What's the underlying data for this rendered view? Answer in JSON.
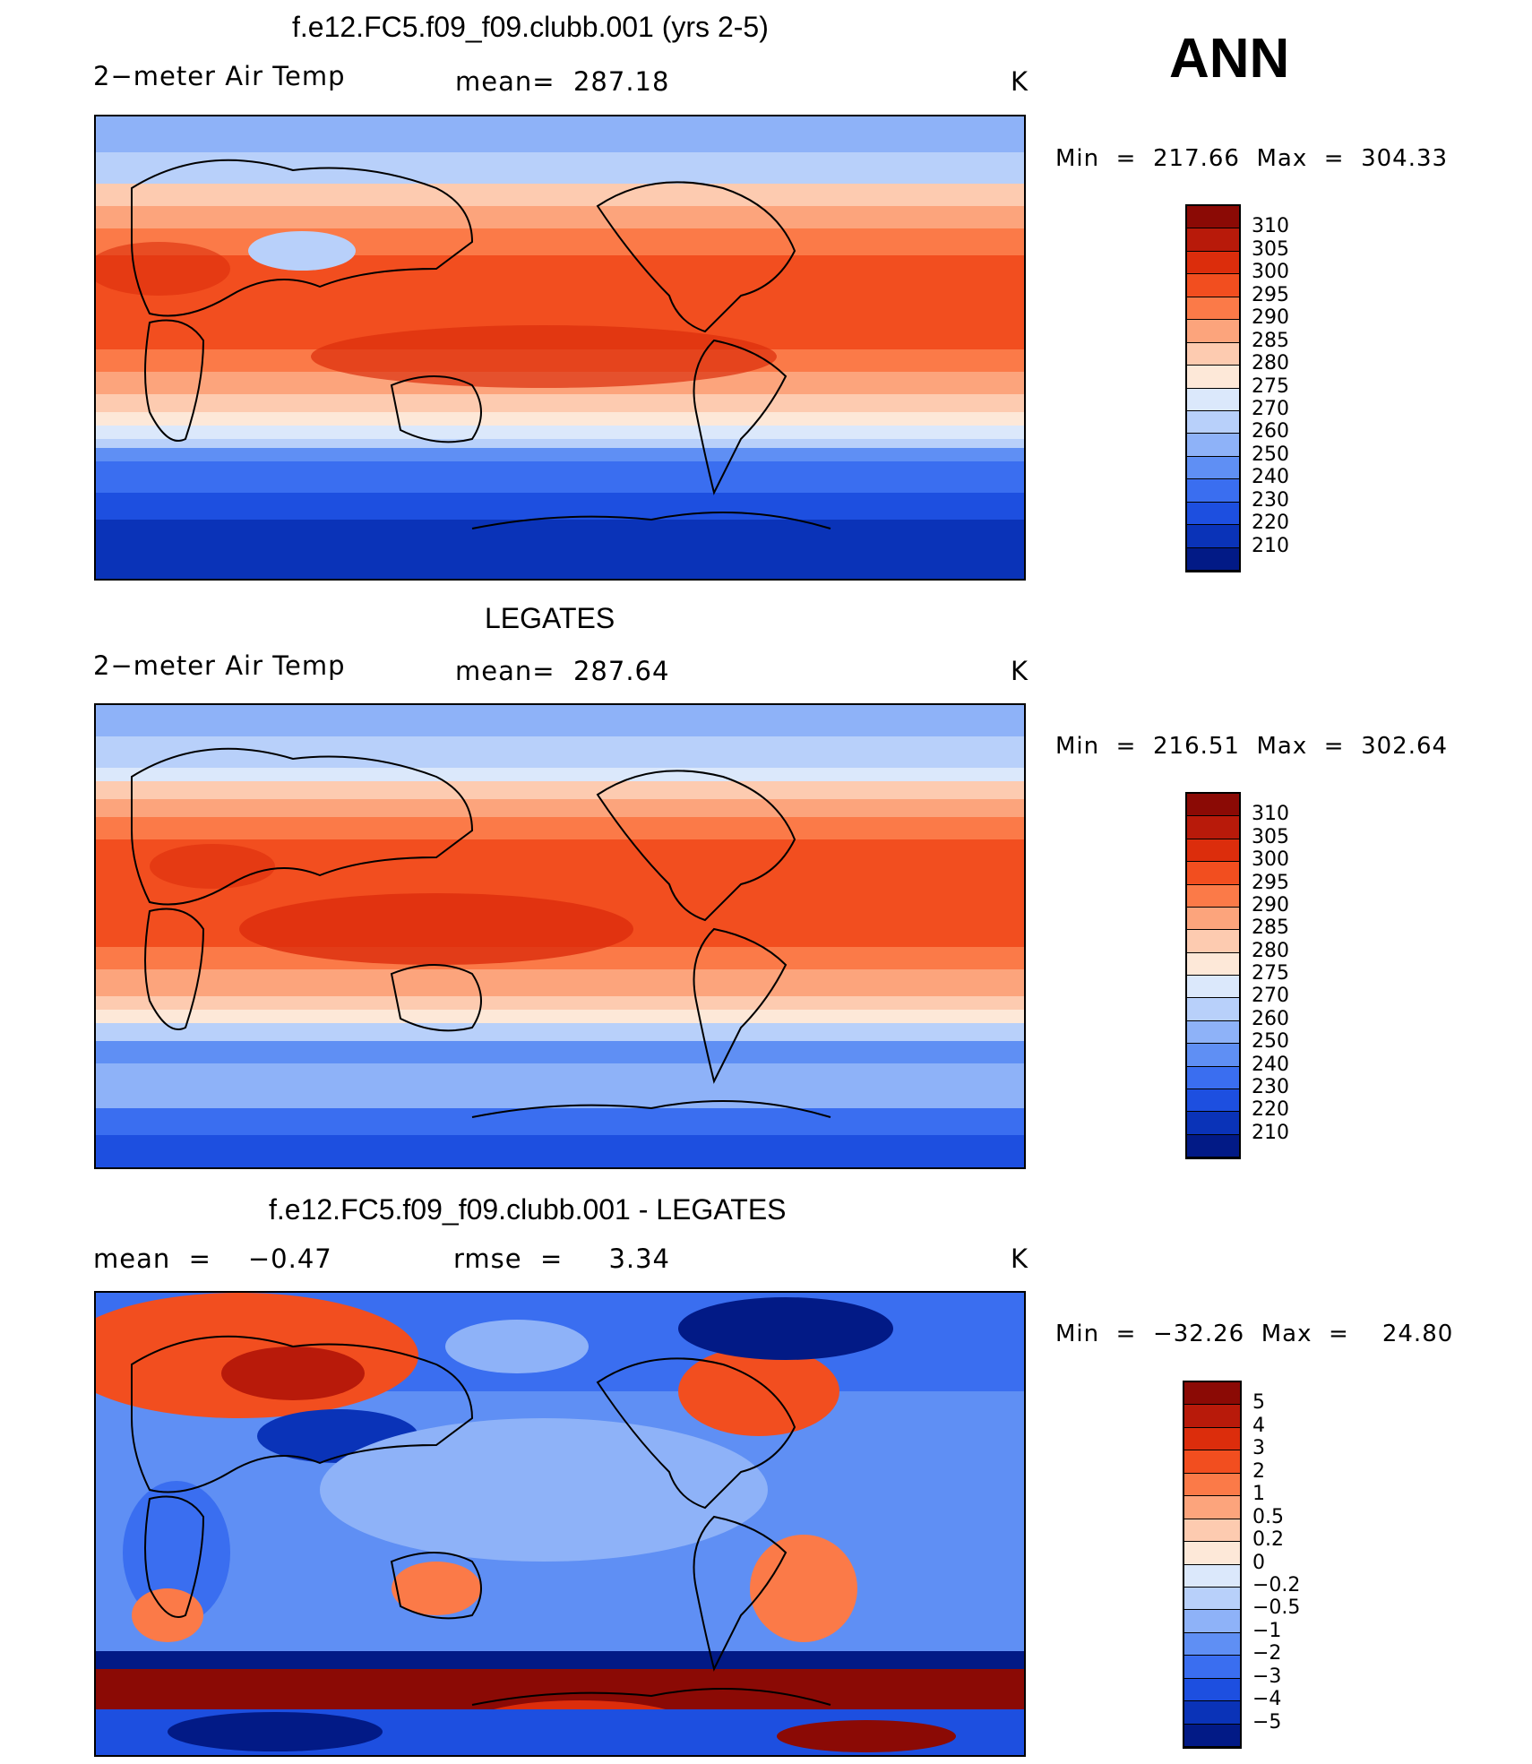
{
  "season": "ANN",
  "panels": [
    {
      "title": "f.e12.FC5.f09_f09.clubb.001 (yrs 2-5)",
      "left_label": "2−meter Air Temp",
      "center_label": "mean=  287.18",
      "units": "K",
      "minmax": "Min  =  217.66  Max  =  304.33",
      "colorbar": {
        "labels": [
          "310",
          "305",
          "300",
          "295",
          "290",
          "285",
          "280",
          "275",
          "270",
          "260",
          "250",
          "240",
          "230",
          "220",
          "210"
        ],
        "colors": [
          "#8b0a05",
          "#b81a0a",
          "#dc2d0c",
          "#f24e1f",
          "#fb7a48",
          "#fca47c",
          "#fdcbb0",
          "#fde8d8",
          "#dbe8fb",
          "#b8d0fa",
          "#8eb2f8",
          "#5f8ff4",
          "#3a6ef0",
          "#1d4fe0",
          "#0a33b8",
          "#021a86"
        ]
      },
      "map_style": "temperature"
    },
    {
      "title": "LEGATES",
      "left_label": "2−meter Air Temp",
      "center_label": "mean=  287.64",
      "units": "K",
      "minmax": "Min  =  216.51  Max  =  302.64",
      "colorbar": {
        "labels": [
          "310",
          "305",
          "300",
          "295",
          "290",
          "285",
          "280",
          "275",
          "270",
          "260",
          "250",
          "240",
          "230",
          "220",
          "210"
        ],
        "colors": [
          "#8b0a05",
          "#b81a0a",
          "#dc2d0c",
          "#f24e1f",
          "#fb7a48",
          "#fca47c",
          "#fdcbb0",
          "#fde8d8",
          "#dbe8fb",
          "#b8d0fa",
          "#8eb2f8",
          "#5f8ff4",
          "#3a6ef0",
          "#1d4fe0",
          "#0a33b8",
          "#021a86"
        ]
      },
      "map_style": "temperature"
    },
    {
      "title": "f.e12.FC5.f09_f09.clubb.001 - LEGATES",
      "left_label": "mean  =    −0.47",
      "center_label": "rmse  =     3.34",
      "units": "K",
      "minmax": "Min  =  −32.26  Max  =    24.80",
      "colorbar": {
        "labels": [
          "5",
          "4",
          "3",
          "2",
          "1",
          "0.5",
          "0.2",
          "0",
          "−0.2",
          "−0.5",
          "−1",
          "−2",
          "−3",
          "−4",
          "−5"
        ],
        "colors": [
          "#8b0a05",
          "#b81a0a",
          "#dc2d0c",
          "#f24e1f",
          "#fb7a48",
          "#fca47c",
          "#fdcbb0",
          "#fde8d8",
          "#dbe8fb",
          "#b8d0fa",
          "#8eb2f8",
          "#5f8ff4",
          "#3a6ef0",
          "#1d4fe0",
          "#0a33b8",
          "#021a86"
        ]
      },
      "map_style": "difference"
    }
  ]
}
